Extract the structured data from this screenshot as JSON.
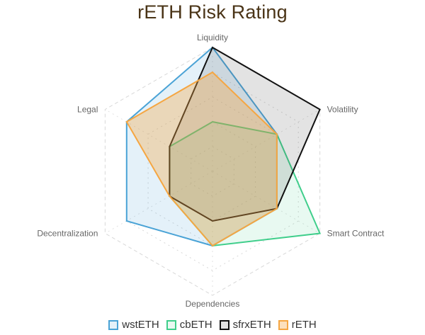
{
  "chart_data": {
    "type": "radar",
    "title": "rETH Risk Rating",
    "axes": [
      "Liquidity",
      "Volatility",
      "Smart Contract",
      "Dependencies",
      "Decentralization",
      "Legal"
    ],
    "range": [
      0,
      5
    ],
    "grid": true,
    "legend_position": "bottom",
    "series": [
      {
        "name": "wstETH",
        "values": [
          5,
          3,
          3,
          3,
          4,
          4
        ],
        "color": "#4aa3d6",
        "fill": "rgba(74,163,214,0.15)"
      },
      {
        "name": "cbETH",
        "values": [
          2,
          3,
          5,
          3,
          2,
          2
        ],
        "color": "#3fce8b",
        "fill": "rgba(63,206,139,0.12)"
      },
      {
        "name": "sfrxETH",
        "values": [
          5,
          5,
          3,
          2,
          2,
          2
        ],
        "color": "#111111",
        "fill": "rgba(80,80,80,0.16)"
      },
      {
        "name": "rETH",
        "values": [
          4,
          3,
          3,
          3,
          2,
          4
        ],
        "color": "#f5a642",
        "fill": "rgba(245,166,66,0.35)"
      }
    ]
  }
}
